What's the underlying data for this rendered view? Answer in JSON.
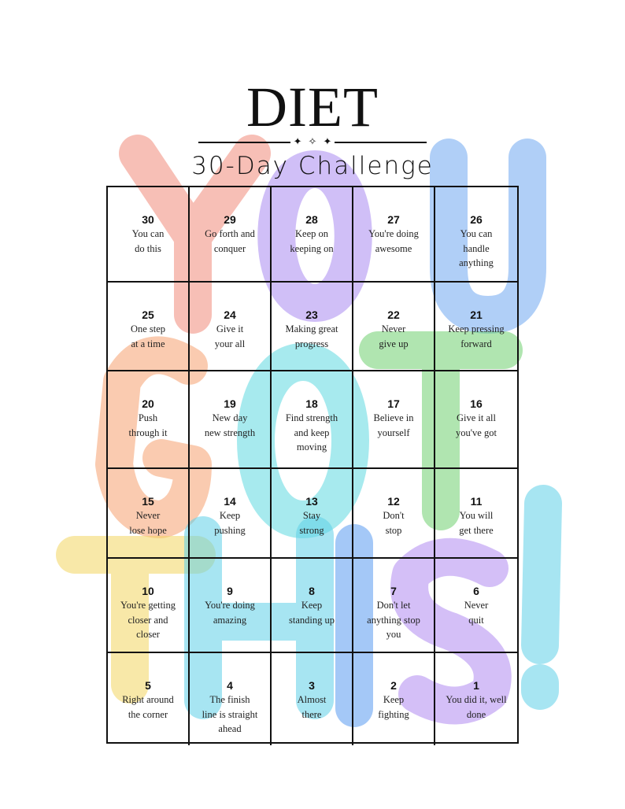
{
  "title": "DIET",
  "ornament": [
    "✦",
    "✧",
    "✦"
  ],
  "subtitle": "30-Day Challenge",
  "background_letters": [
    {
      "char": "Y",
      "color": "#f08a7a"
    },
    {
      "char": "O",
      "color": "#a98af0"
    },
    {
      "char": "U",
      "color": "#6fa8f0"
    },
    {
      "char": "G",
      "color": "#f5a070"
    },
    {
      "char": "O",
      "color": "#5fd8e0"
    },
    {
      "char": "T",
      "color": "#6fd070"
    },
    {
      "char": "T",
      "color": "#f3d560"
    },
    {
      "char": "H",
      "color": "#5fd0e8"
    },
    {
      "char": "I",
      "color": "#5a9af0"
    },
    {
      "char": "S",
      "color": "#b08af0"
    },
    {
      "char": "!",
      "color": "#5fd0e8"
    }
  ],
  "cells": [
    {
      "day": "30",
      "text": "You can\ndo this"
    },
    {
      "day": "29",
      "text": "Go forth and\nconquer"
    },
    {
      "day": "28",
      "text": "Keep on\nkeeping on"
    },
    {
      "day": "27",
      "text": "You're doing\nawesome"
    },
    {
      "day": "26",
      "text": "You can\nhandle\nanything"
    },
    {
      "day": "25",
      "text": "One step\nat a time"
    },
    {
      "day": "24",
      "text": "Give it\nyour all"
    },
    {
      "day": "23",
      "text": "Making great\nprogress"
    },
    {
      "day": "22",
      "text": "Never\ngive up"
    },
    {
      "day": "21",
      "text": "Keep pressing\nforward"
    },
    {
      "day": "20",
      "text": "Push\nthrough it"
    },
    {
      "day": "19",
      "text": "New day\nnew strength"
    },
    {
      "day": "18",
      "text": "Find strength\nand keep\nmoving"
    },
    {
      "day": "17",
      "text": "Believe in\nyourself"
    },
    {
      "day": "16",
      "text": "Give it all\nyou've got"
    },
    {
      "day": "15",
      "text": "Never\nlose hope"
    },
    {
      "day": "14",
      "text": "Keep\npushing"
    },
    {
      "day": "13",
      "text": "Stay\nstrong"
    },
    {
      "day": "12",
      "text": "Don't\nstop"
    },
    {
      "day": "11",
      "text": "You will\nget there"
    },
    {
      "day": "10",
      "text": "You're getting\ncloser and\ncloser"
    },
    {
      "day": "9",
      "text": "You're doing\namazing"
    },
    {
      "day": "8",
      "text": "Keep\nstanding up"
    },
    {
      "day": "7",
      "text": "Don't let\nanything stop\nyou"
    },
    {
      "day": "6",
      "text": "Never\nquit"
    },
    {
      "day": "5",
      "text": "Right around\nthe corner"
    },
    {
      "day": "4",
      "text": "The finish\nline is straight\nahead"
    },
    {
      "day": "3",
      "text": "Almost\nthere"
    },
    {
      "day": "2",
      "text": "Keep\nfighting"
    },
    {
      "day": "1",
      "text": "You did it, well\ndone"
    }
  ]
}
